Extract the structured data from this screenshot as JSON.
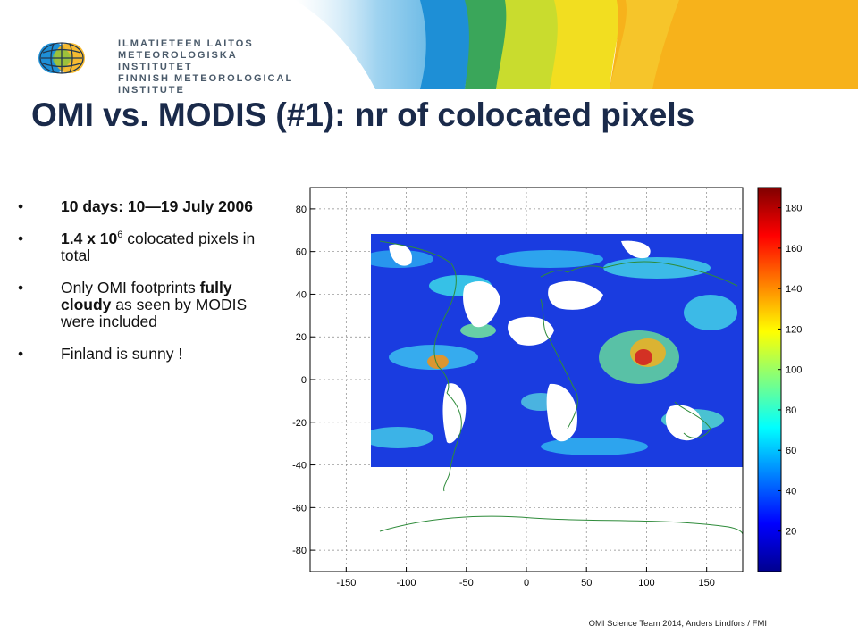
{
  "institute": {
    "line1": "ILMATIETEEN LAITOS",
    "line2": "METEOROLOGISKA INSTITUTET",
    "line3": "FINNISH METEOROLOGICAL INSTITUTE",
    "logo_icon": "fmi-globe-logo-icon"
  },
  "title": "OMI vs. MODIS (#1): nr of colocated pixels",
  "bullets": {
    "b1": {
      "bold": "10 days: 10—19 July 2006"
    },
    "b2": {
      "bold": "1.4 x 10",
      "sup": "6",
      "rest": " colocated pixels in total"
    },
    "b3": {
      "pre": "Only OMI footprints ",
      "bold": "fully cloudy",
      "post": " as seen by MODIS were included"
    },
    "b4": {
      "text": "Finland is sunny !"
    },
    "marker": "•"
  },
  "map": {
    "x_ticks": [
      "-150",
      "-100",
      "-50",
      "0",
      "50",
      "100",
      "150"
    ],
    "y_ticks": [
      "80",
      "60",
      "40",
      "20",
      "0",
      "-20",
      "-40",
      "-60",
      "-80"
    ],
    "colorbar_ticks": [
      "180",
      "160",
      "140",
      "120",
      "100",
      "80",
      "60",
      "40",
      "20"
    ]
  },
  "colors": {
    "title": "#1a2a4a",
    "banner_blue": "#1e8fd6",
    "banner_green": "#5cb85c",
    "banner_yellow": "#f5d800",
    "banner_orange": "#f5a623"
  },
  "footer": "OMI Science Team 2014, Anders Lindfors / FMI"
}
